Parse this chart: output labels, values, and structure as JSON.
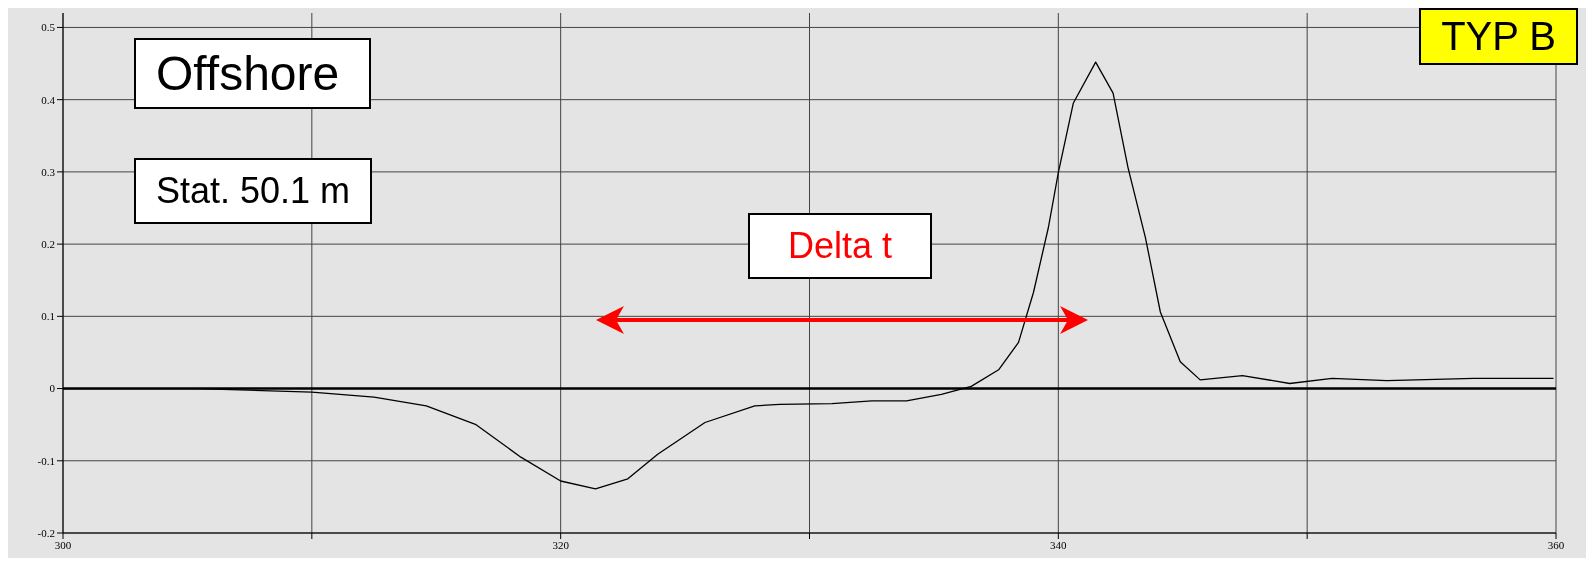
{
  "chart_data": {
    "type": "line",
    "x": [
      300,
      305.4,
      310,
      312.5,
      314.6,
      316.6,
      318.4,
      320,
      321.4,
      322.7,
      323.9,
      325.8,
      327.8,
      328.8,
      330.9,
      332.5,
      333.9,
      335.3,
      336.5,
      337.6,
      338.4,
      339,
      339.6,
      340,
      340.6,
      341.5,
      342.2,
      342.8,
      343.5,
      344.1,
      344.9,
      345.7,
      347.4,
      349.3,
      351,
      353.2,
      356.7,
      359.9
    ],
    "series": [
      {
        "color": "#000000",
        "values": [
          0,
          0,
          -0.005,
          -0.012,
          -0.024,
          -0.05,
          -0.095,
          -0.128,
          -0.139,
          -0.125,
          -0.091,
          -0.047,
          -0.024,
          -0.022,
          -0.021,
          -0.017,
          -0.017,
          -0.008,
          0.003,
          0.026,
          0.064,
          0.133,
          0.223,
          0.299,
          0.395,
          0.452,
          0.409,
          0.306,
          0.209,
          0.106,
          0.037,
          0.012,
          0.018,
          0.007,
          0.014,
          0.011,
          0.014,
          0.014
        ]
      }
    ],
    "xlim": [
      300,
      360
    ],
    "xticks": [
      300,
      {
        "value": 310,
        "label": null
      },
      320,
      {
        "value": 330,
        "label": null
      },
      340,
      {
        "value": 350,
        "label": null
      },
      360
    ],
    "ylim": [
      -0.2,
      0.52
    ],
    "yticks": [
      -0.2,
      -0.1,
      0,
      0.1,
      0.2,
      0.3,
      0.4,
      0.5
    ],
    "grid": true,
    "marker": "none",
    "line_style": "solid",
    "ref_lines": [
      {
        "axis": "y",
        "value": 0,
        "color": "#000000"
      }
    ],
    "annotations": [
      "Offshore",
      "Stat. 50.1 m",
      "TYP B",
      "Delta t"
    ]
  }
}
